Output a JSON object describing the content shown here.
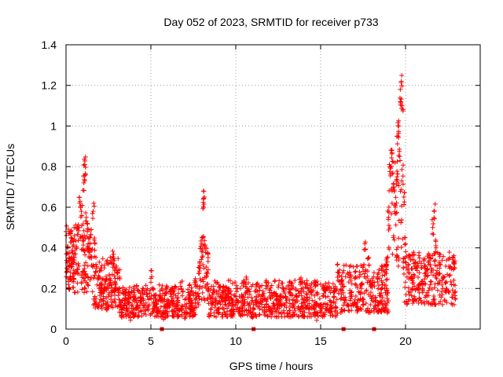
{
  "chart_data": {
    "type": "scatter",
    "title": "Day 052 of 2023, SRMTID for receiver p733",
    "xlabel": "GPS time / hours",
    "ylabel": "SRMTID / TECUs",
    "xlim": [
      0,
      24.4
    ],
    "ylim": [
      0,
      1.4
    ],
    "x_ticks": [
      0,
      5,
      10,
      15,
      20
    ],
    "y_ticks": [
      0,
      0.2,
      0.4,
      0.6,
      0.8,
      1,
      1.2,
      1.4
    ],
    "x_tick_labels": [
      "0",
      "5",
      "10",
      "15",
      "20"
    ],
    "y_tick_labels": [
      "0",
      "0.2",
      "0.4",
      "0.6",
      "0.8",
      "1",
      "1.2",
      "1.4"
    ],
    "grid": true,
    "marker": "+",
    "color": "#ff0000",
    "series": [
      {
        "name": "SRMTID",
        "x": [
          0.0,
          0.05,
          0.1,
          0.15,
          0.2,
          0.25,
          0.3,
          0.35,
          0.4,
          0.45,
          0.5,
          0.6,
          0.7,
          0.8,
          0.9,
          1.0,
          1.05,
          1.1,
          1.15,
          1.2,
          1.25,
          1.3,
          1.35,
          1.4,
          1.5,
          1.6,
          1.7,
          1.8,
          1.9,
          2.0,
          2.1,
          2.2,
          2.3,
          2.4,
          2.5,
          2.6,
          2.7,
          2.8,
          2.9,
          3.0,
          3.1,
          3.2,
          3.3,
          3.4,
          3.5,
          3.6,
          3.7,
          3.8,
          3.9,
          4.0,
          4.2,
          4.4,
          4.6,
          4.8,
          5.0,
          5.2,
          5.4,
          5.6,
          5.8,
          6.0,
          6.2,
          6.4,
          6.6,
          6.8,
          7.0,
          7.2,
          7.4,
          7.6,
          7.8,
          7.9,
          8.0,
          8.05,
          8.1,
          8.15,
          8.2,
          8.3,
          8.4,
          8.6,
          8.8,
          9.0,
          9.2,
          9.4,
          9.6,
          9.8,
          10.0,
          10.2,
          10.4,
          10.6,
          10.8,
          11.0,
          11.2,
          11.4,
          11.6,
          11.8,
          12.0,
          12.2,
          12.4,
          12.6,
          12.8,
          13.0,
          13.2,
          13.4,
          13.6,
          13.8,
          14.0,
          14.2,
          14.4,
          14.6,
          14.8,
          15.0,
          15.2,
          15.4,
          15.6,
          15.8,
          16.0,
          16.2,
          16.4,
          16.6,
          16.8,
          17.0,
          17.2,
          17.4,
          17.6,
          17.8,
          18.0,
          18.2,
          18.4,
          18.6,
          18.8,
          18.9,
          19.0,
          19.1,
          19.2,
          19.3,
          19.4,
          19.5,
          19.55,
          19.6,
          19.65,
          19.7,
          19.75,
          19.8,
          19.9,
          20.0,
          20.2,
          20.4,
          20.6,
          20.8,
          21.0,
          21.2,
          21.4,
          21.6,
          21.7,
          21.8,
          22.0,
          22.2,
          22.4,
          22.6,
          22.8,
          22.9
        ],
        "y": [
          0.48,
          0.3,
          0.4,
          0.22,
          0.35,
          0.28,
          0.45,
          0.32,
          0.38,
          0.25,
          0.34,
          0.4,
          0.5,
          0.62,
          0.58,
          0.45,
          0.72,
          0.81,
          0.76,
          0.55,
          0.48,
          0.42,
          0.38,
          0.45,
          0.35,
          0.58,
          0.42,
          0.3,
          0.25,
          0.18,
          0.22,
          0.15,
          0.2,
          0.12,
          0.16,
          0.25,
          0.18,
          0.35,
          0.22,
          0.28,
          0.18,
          0.12,
          0.08,
          0.1,
          0.15,
          0.12,
          0.18,
          0.08,
          0.12,
          0.18,
          0.1,
          0.14,
          0.12,
          0.16,
          0.25,
          0.12,
          0.1,
          0.14,
          0.08,
          0.12,
          0.16,
          0.1,
          0.12,
          0.2,
          0.08,
          0.18,
          0.14,
          0.22,
          0.16,
          0.3,
          0.38,
          0.45,
          0.6,
          0.65,
          0.4,
          0.28,
          0.2,
          0.15,
          0.12,
          0.1,
          0.18,
          0.14,
          0.2,
          0.12,
          0.16,
          0.1,
          0.14,
          0.22,
          0.12,
          0.08,
          0.16,
          0.1,
          0.14,
          0.12,
          0.18,
          0.1,
          0.16,
          0.12,
          0.2,
          0.14,
          0.18,
          0.12,
          0.16,
          0.22,
          0.1,
          0.14,
          0.18,
          0.12,
          0.08,
          0.12,
          0.2,
          0.12,
          0.1,
          0.16,
          0.28,
          0.22,
          0.14,
          0.12,
          0.18,
          0.25,
          0.1,
          0.2,
          0.42,
          0.35,
          0.22,
          0.15,
          0.12,
          0.2,
          0.28,
          0.35,
          0.55,
          0.8,
          0.88,
          0.7,
          0.6,
          0.75,
          0.95,
          1.0,
          0.85,
          1.12,
          1.22,
          1.1,
          0.65,
          0.42,
          0.35,
          0.25,
          0.3,
          0.22,
          0.2,
          0.28,
          0.35,
          0.5,
          0.58,
          0.4,
          0.3,
          0.25,
          0.2,
          0.3,
          0.35,
          0.3
        ],
        "dense_bands": [
          {
            "x_from": 0.0,
            "x_to": 1.6,
            "y_low": 0.18,
            "y_high": 0.52
          },
          {
            "x_from": 1.6,
            "x_to": 3.2,
            "y_low": 0.1,
            "y_high": 0.36
          },
          {
            "x_from": 3.2,
            "x_to": 7.8,
            "y_low": 0.06,
            "y_high": 0.22
          },
          {
            "x_from": 7.8,
            "x_to": 8.4,
            "y_low": 0.14,
            "y_high": 0.45
          },
          {
            "x_from": 8.4,
            "x_to": 16.0,
            "y_low": 0.06,
            "y_high": 0.24
          },
          {
            "x_from": 16.0,
            "x_to": 19.0,
            "y_low": 0.08,
            "y_high": 0.32
          },
          {
            "x_from": 19.0,
            "x_to": 19.9,
            "y_low": 0.3,
            "y_high": 0.85
          },
          {
            "x_from": 19.9,
            "x_to": 23.0,
            "y_low": 0.12,
            "y_high": 0.38
          }
        ]
      }
    ],
    "gap_markers_x": [
      5.65,
      11.05,
      16.35,
      18.15
    ]
  }
}
